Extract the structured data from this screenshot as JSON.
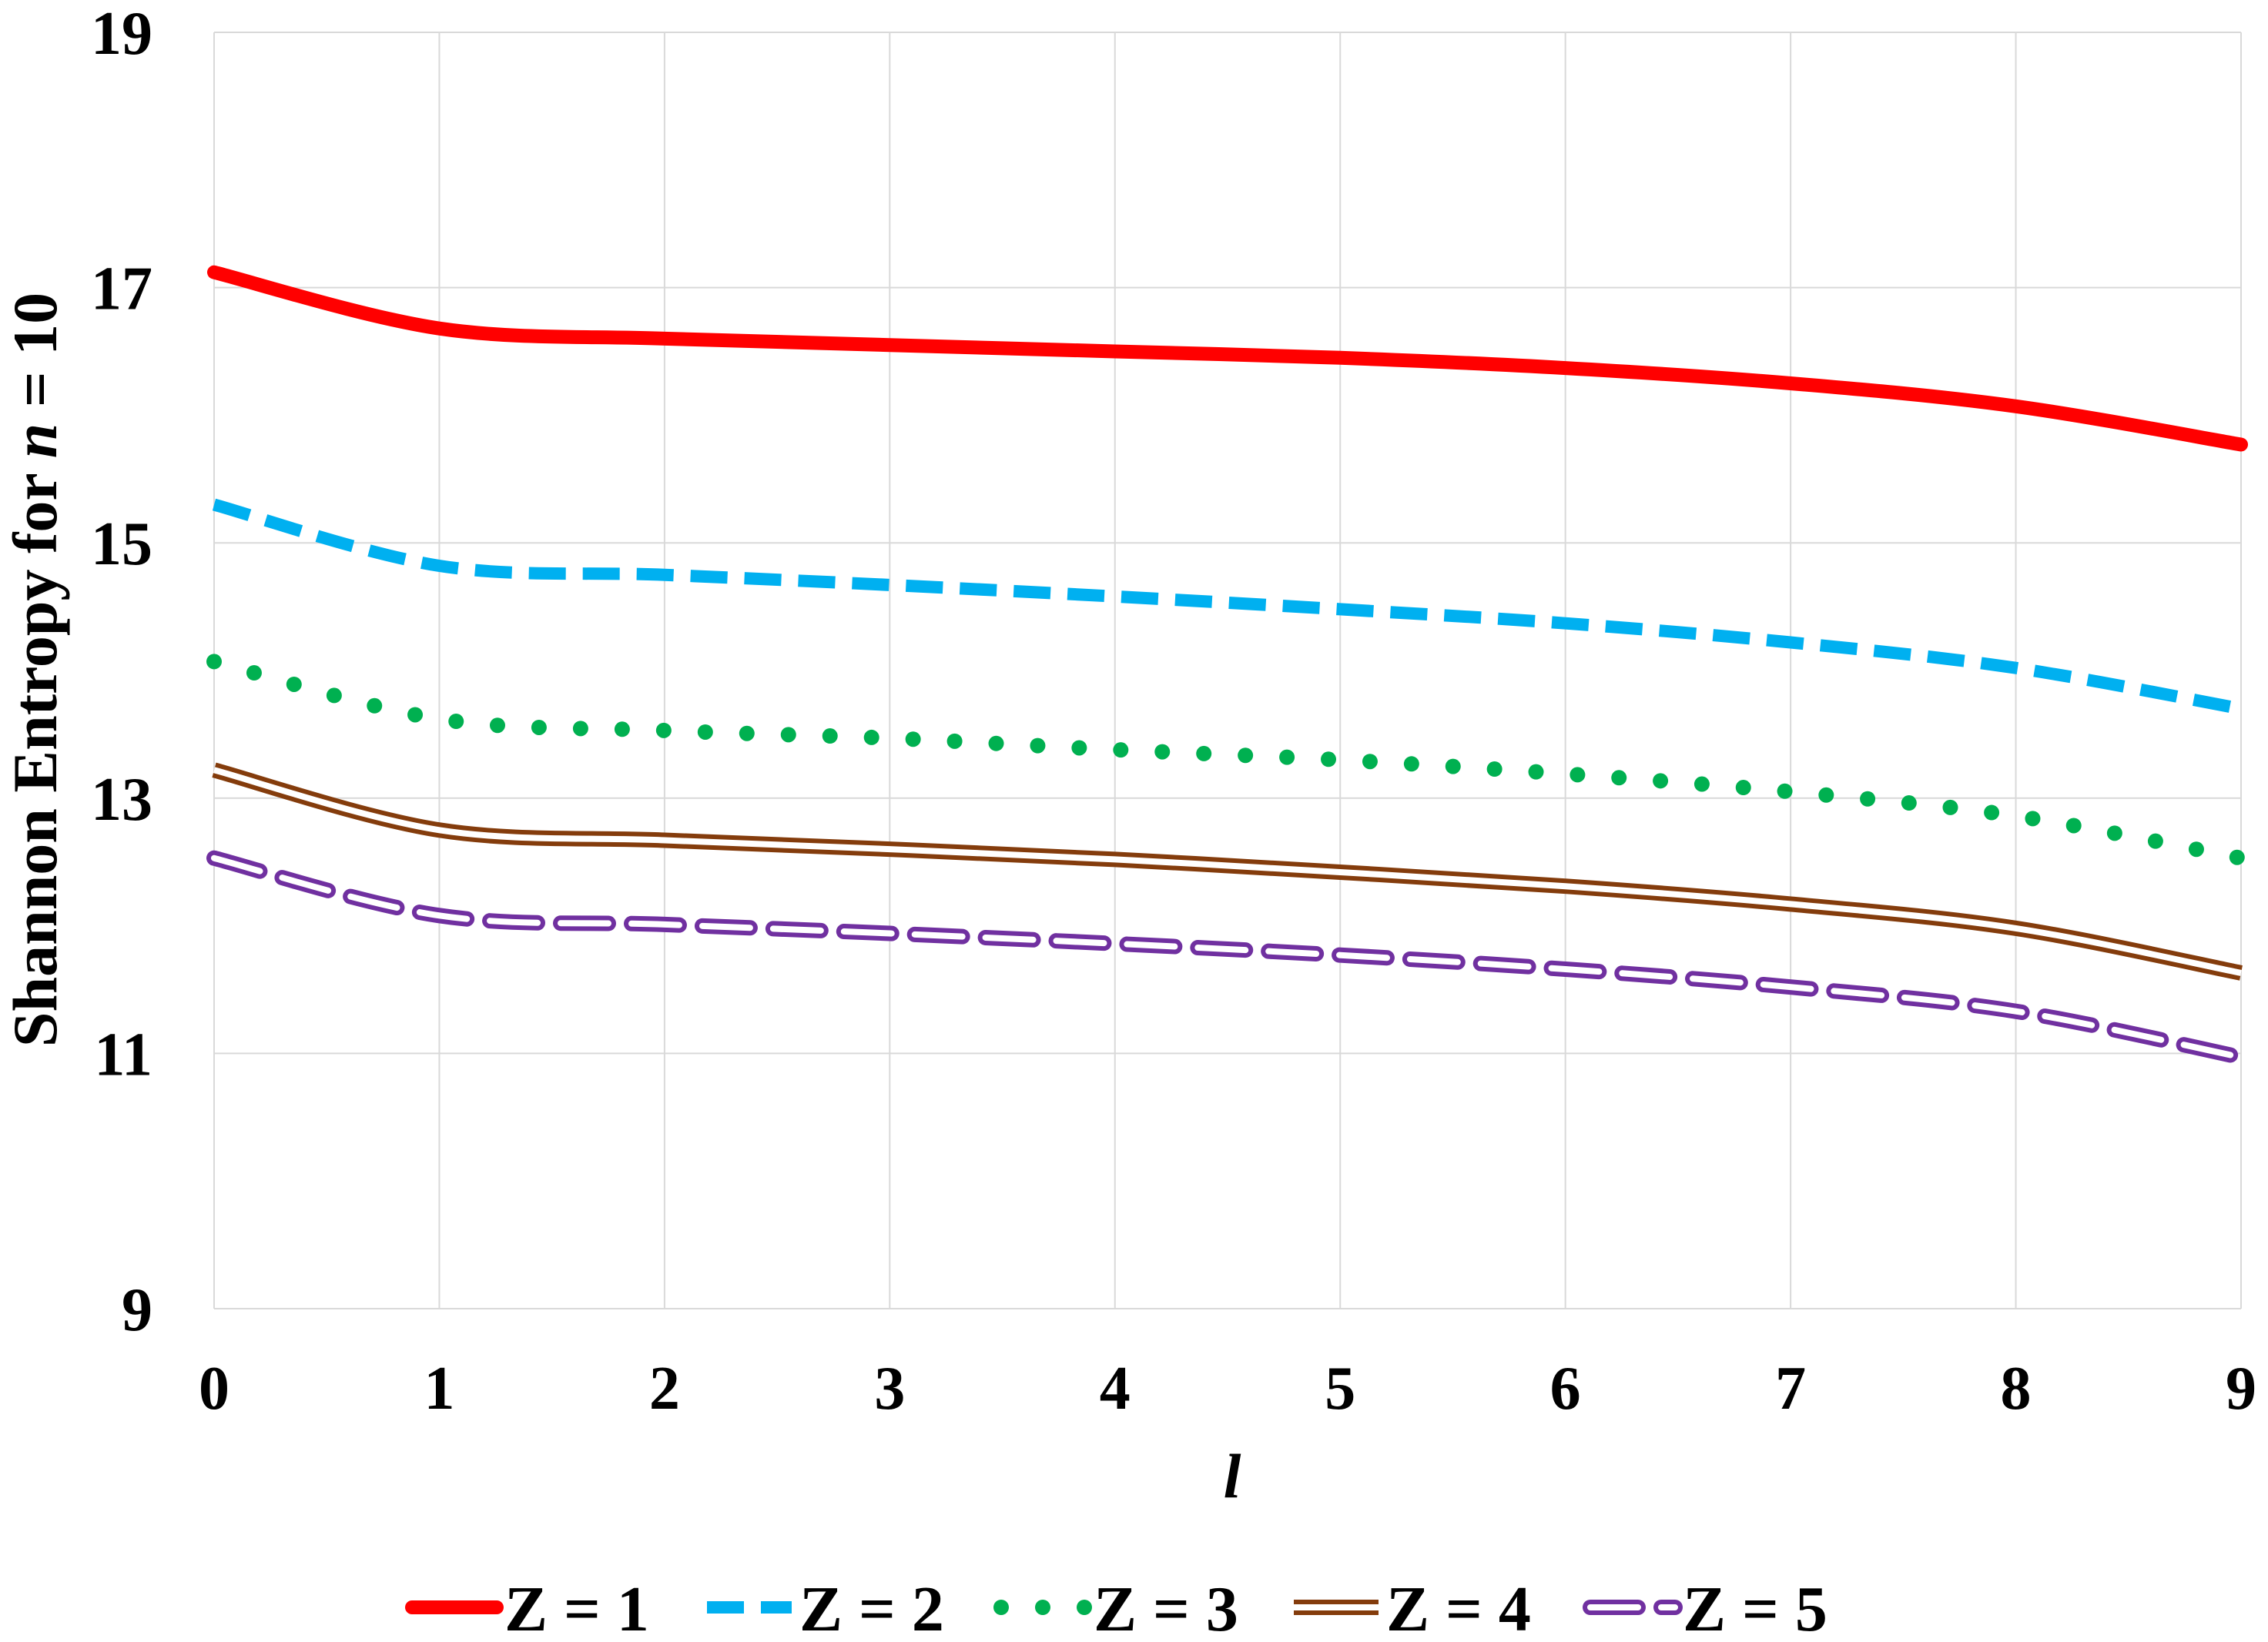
{
  "chart_data": {
    "type": "line",
    "xlabel": "l",
    "ylabel_prefix": "Shannon Entropy for ",
    "ylabel_var": "n",
    "ylabel_suffix": " = 10",
    "x": [
      0,
      1,
      2,
      3,
      4,
      5,
      6,
      7,
      8,
      9
    ],
    "xlim": [
      0,
      9
    ],
    "ylim": [
      9,
      19
    ],
    "xticks": [
      "0",
      "1",
      "2",
      "3",
      "4",
      "5",
      "6",
      "7",
      "8",
      "9"
    ],
    "yticks": [
      "9",
      "11",
      "13",
      "15",
      "17",
      "19"
    ],
    "grid": true,
    "legend_position": "bottom",
    "series": [
      {
        "name": "Z = 1",
        "color": "#ff0000",
        "style": "solid-thick",
        "values": [
          17.12,
          16.68,
          16.6,
          16.55,
          16.5,
          16.45,
          16.37,
          16.25,
          16.07,
          15.77
        ]
      },
      {
        "name": "Z = 2",
        "color": "#00b0f0",
        "style": "dashed",
        "values": [
          15.3,
          14.82,
          14.75,
          14.67,
          14.58,
          14.48,
          14.37,
          14.22,
          14.02,
          13.7
        ]
      },
      {
        "name": "Z = 3",
        "color": "#00b050",
        "style": "dotted",
        "values": [
          14.07,
          13.62,
          13.53,
          13.47,
          13.38,
          13.3,
          13.19,
          13.05,
          12.86,
          12.53
        ]
      },
      {
        "name": "Z = 4",
        "color": "#843c0c",
        "style": "double",
        "values": [
          13.22,
          12.75,
          12.67,
          12.6,
          12.52,
          12.42,
          12.31,
          12.17,
          11.98,
          11.63
        ]
      },
      {
        "name": "Z = 5",
        "color": "#7030a0",
        "style": "double-dashed",
        "values": [
          12.53,
          12.08,
          12.01,
          11.94,
          11.86,
          11.77,
          11.66,
          11.52,
          11.33,
          10.97
        ]
      }
    ]
  }
}
